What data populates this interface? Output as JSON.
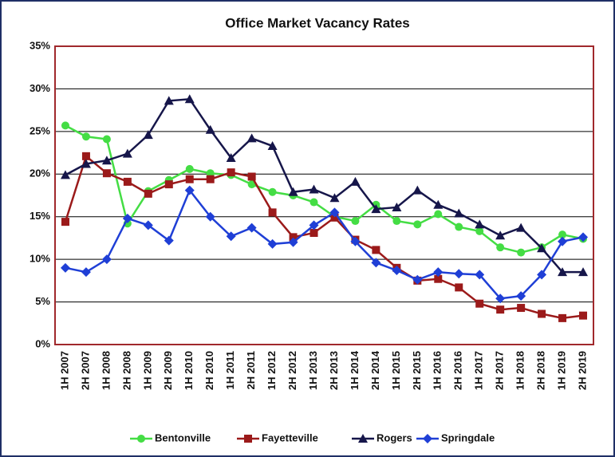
{
  "chart_data": {
    "type": "line",
    "title": "Office Market Vacancy Rates",
    "categories": [
      "1H 2007",
      "2H 2007",
      "1H 2008",
      "2H 2008",
      "1H 2009",
      "2H 2009",
      "1H 2010",
      "2H 2010",
      "1H 2011",
      "2H 2011",
      "1H 2012",
      "2H 2012",
      "1H 2013",
      "2H 2013",
      "1H 2014",
      "2H 2014",
      "1H 2015",
      "2H 2015",
      "1H 2016",
      "2H 2016",
      "1H 2017",
      "2H 2017",
      "1H 2018",
      "2H 2018",
      "1H 2019",
      "2H 2019"
    ],
    "series": [
      {
        "name": "Bentonville",
        "color": "#44dd44",
        "marker": "circle",
        "values": [
          25.7,
          24.4,
          24.1,
          14.2,
          18.0,
          19.3,
          20.6,
          20.1,
          19.9,
          18.8,
          17.9,
          17.5,
          16.7,
          15.0,
          14.5,
          16.4,
          14.5,
          14.1,
          15.3,
          13.8,
          13.3,
          11.4,
          10.8,
          11.4,
          12.9,
          12.4
        ]
      },
      {
        "name": "Fayetteville",
        "color": "#9b1a1a",
        "marker": "square",
        "values": [
          14.4,
          22.1,
          20.1,
          19.1,
          17.7,
          18.8,
          19.4,
          19.4,
          20.2,
          19.7,
          15.5,
          12.6,
          13.1,
          14.9,
          12.3,
          11.1,
          9.0,
          7.5,
          7.7,
          6.7,
          4.8,
          4.1,
          4.3,
          3.6,
          3.1,
          3.4
        ]
      },
      {
        "name": "Rogers",
        "color": "#16164a",
        "marker": "triangle",
        "values": [
          19.9,
          21.2,
          21.6,
          22.4,
          24.6,
          28.6,
          28.8,
          25.2,
          21.9,
          24.2,
          23.3,
          17.9,
          18.2,
          17.2,
          19.1,
          15.9,
          16.1,
          18.1,
          16.4,
          15.4,
          14.1,
          12.8,
          13.7,
          11.3,
          8.5,
          8.5
        ]
      },
      {
        "name": "Springdale",
        "color": "#1f3fd6",
        "marker": "diamond",
        "values": [
          9.0,
          8.5,
          10.0,
          14.8,
          14.0,
          12.2,
          18.1,
          15.0,
          12.7,
          13.7,
          11.8,
          12.0,
          14.0,
          15.5,
          12.1,
          9.6,
          8.7,
          7.6,
          8.5,
          8.3,
          8.2,
          5.4,
          5.7,
          8.2,
          12.1,
          12.6
        ]
      }
    ],
    "ylim": [
      0,
      35
    ],
    "yticks": [
      {
        "value": 0,
        "label": "0%"
      },
      {
        "value": 5,
        "label": "5%"
      },
      {
        "value": 10,
        "label": "10%"
      },
      {
        "value": 15,
        "label": "15%"
      },
      {
        "value": 20,
        "label": "20%"
      },
      {
        "value": 25,
        "label": "25%"
      },
      {
        "value": 30,
        "label": "30%"
      },
      {
        "value": 35,
        "label": "35%"
      }
    ],
    "grid": true,
    "legend": "bottom"
  }
}
